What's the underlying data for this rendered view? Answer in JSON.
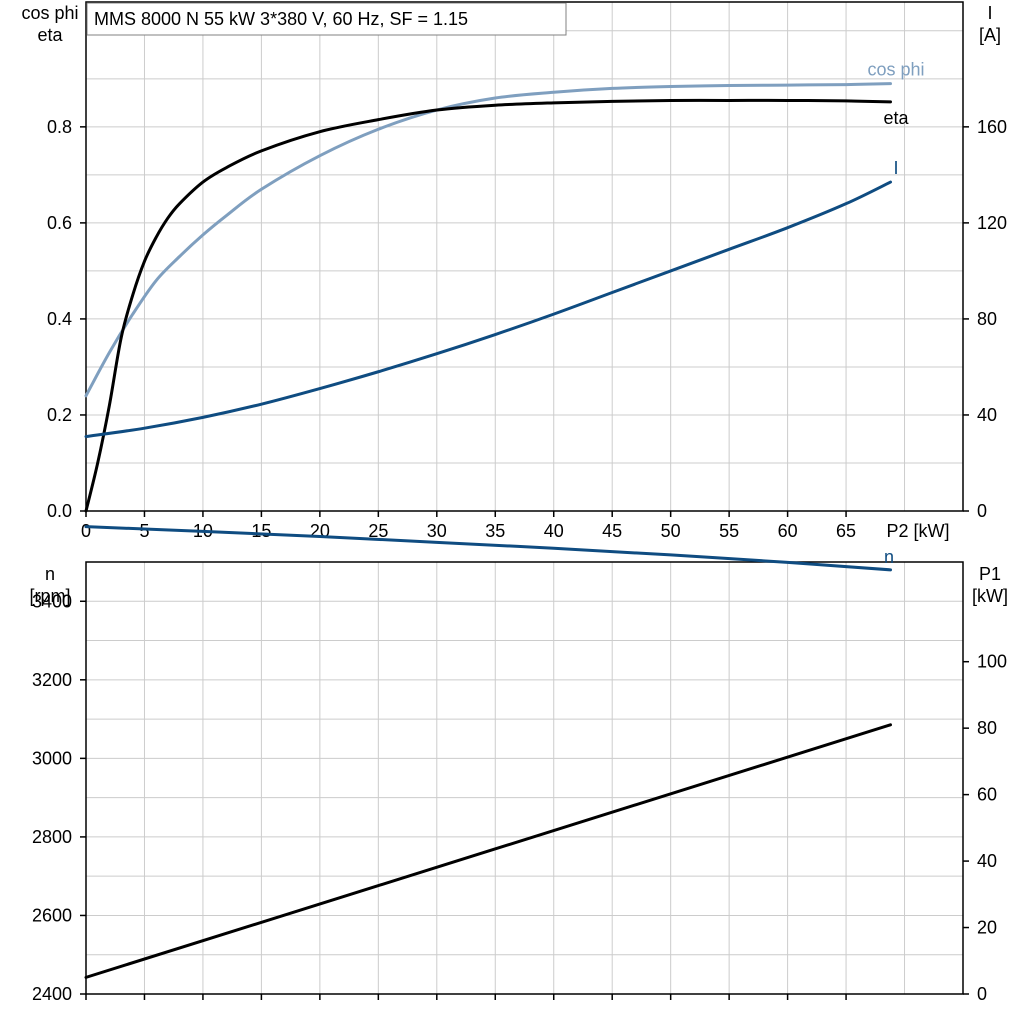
{
  "colors": {
    "cosphi": "#7f9fbf",
    "eta": "#000000",
    "current": "#0f4c81",
    "speed": "#0f4c81",
    "p1": "#000000",
    "grid": "#cccccc"
  },
  "chart_data": [
    {
      "type": "line",
      "title": "MMS 8000 N   55 kW   3*380 V, 60 Hz, SF = 1.15",
      "xlabel": "P2 [kW]",
      "xlim": [
        0,
        75
      ],
      "xticks": [
        "0",
        "5",
        "10",
        "15",
        "20",
        "25",
        "30",
        "35",
        "40",
        "45",
        "50",
        "55",
        "60",
        "65"
      ],
      "ylabel_left": [
        "cos phi",
        "eta"
      ],
      "ylim_left": [
        0,
        1.06
      ],
      "yticks_left": [
        "0.0",
        "0.2",
        "0.4",
        "0.6",
        "0.8"
      ],
      "ylabel_right": [
        "I",
        "[A]"
      ],
      "ylim_right": [
        0,
        212
      ],
      "yticks_right": [
        "0",
        "40",
        "80",
        "120",
        "160"
      ],
      "grid": true,
      "series": [
        {
          "name": "cos phi",
          "axis": "left",
          "x": [
            0,
            2,
            4,
            6,
            8,
            10,
            12,
            15,
            20,
            25,
            30,
            35,
            40,
            45,
            50,
            55,
            60,
            65,
            68.8
          ],
          "y": [
            0.24,
            0.33,
            0.41,
            0.48,
            0.53,
            0.575,
            0.615,
            0.67,
            0.74,
            0.795,
            0.835,
            0.86,
            0.872,
            0.88,
            0.884,
            0.886,
            0.887,
            0.888,
            0.89
          ]
        },
        {
          "name": "eta",
          "axis": "left",
          "x": [
            0,
            1,
            2,
            3,
            4,
            5,
            6,
            7,
            8,
            10,
            12,
            15,
            20,
            25,
            30,
            35,
            40,
            45,
            50,
            55,
            60,
            65,
            68.8
          ],
          "y": [
            0.0,
            0.1,
            0.22,
            0.36,
            0.45,
            0.52,
            0.57,
            0.61,
            0.64,
            0.685,
            0.715,
            0.75,
            0.79,
            0.815,
            0.835,
            0.845,
            0.85,
            0.853,
            0.855,
            0.855,
            0.855,
            0.854,
            0.852
          ]
        },
        {
          "name": "I",
          "axis": "right",
          "x": [
            0,
            5,
            10,
            15,
            20,
            25,
            30,
            35,
            40,
            45,
            50,
            55,
            60,
            65,
            68.8
          ],
          "y": [
            31,
            34.5,
            39,
            44.5,
            51,
            58,
            65.5,
            73.5,
            82,
            91,
            100,
            109,
            118,
            128,
            137
          ]
        }
      ]
    },
    {
      "type": "line",
      "xlim": [
        0,
        75
      ],
      "ylabel_left": [
        "n",
        "[rpm]"
      ],
      "ylim_left": [
        2400,
        3500
      ],
      "yticks_left": [
        "2400",
        "2600",
        "2800",
        "3000",
        "3200",
        "3400"
      ],
      "ylabel_right": [
        "P1",
        "[kW]"
      ],
      "ylim_right": [
        0,
        130
      ],
      "yticks_right": [
        "0",
        "20",
        "40",
        "60",
        "80",
        "100"
      ],
      "grid": true,
      "series": [
        {
          "name": "n",
          "axis": "left",
          "x": [
            0,
            10,
            20,
            30,
            40,
            50,
            60,
            68.8
          ],
          "y": [
            3590,
            3578,
            3565,
            3550,
            3535,
            3518,
            3499,
            3480
          ]
        },
        {
          "axis": "right",
          "x": [
            0,
            68.8
          ],
          "y": [
            5,
            81
          ]
        }
      ]
    }
  ]
}
